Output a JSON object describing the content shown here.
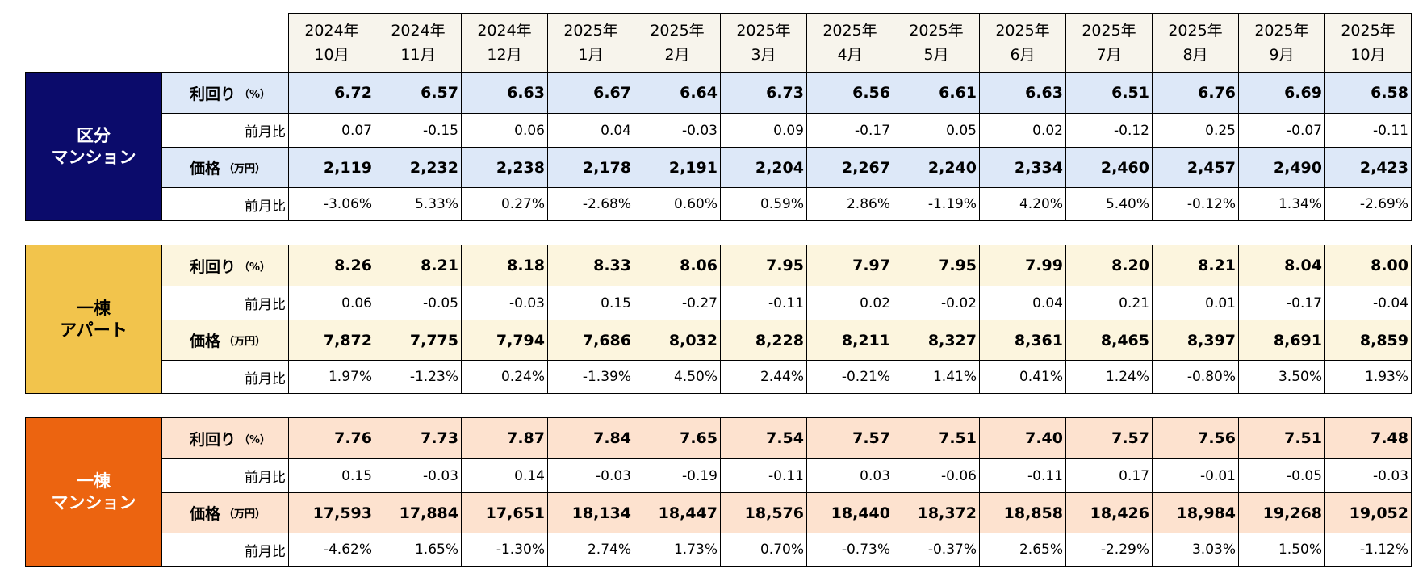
{
  "header": {
    "months": [
      [
        "2024年",
        "10月"
      ],
      [
        "2024年",
        "11月"
      ],
      [
        "2024年",
        "12月"
      ],
      [
        "2025年",
        "1月"
      ],
      [
        "2025年",
        "2月"
      ],
      [
        "2025年",
        "3月"
      ],
      [
        "2025年",
        "4月"
      ],
      [
        "2025年",
        "5月"
      ],
      [
        "2025年",
        "6月"
      ],
      [
        "2025年",
        "7月"
      ],
      [
        "2025年",
        "8月"
      ],
      [
        "2025年",
        "9月"
      ],
      [
        "2025年",
        "10月"
      ]
    ]
  },
  "groups": [
    {
      "name": [
        "区分",
        "マンション"
      ],
      "rows": [
        {
          "label": "利回り",
          "unit": "（%）",
          "values": [
            "6.72",
            "6.57",
            "6.63",
            "6.67",
            "6.64",
            "6.73",
            "6.56",
            "6.61",
            "6.63",
            "6.51",
            "6.76",
            "6.69",
            "6.58"
          ]
        },
        {
          "label": "前月比",
          "values": [
            "0.07",
            "-0.15",
            "0.06",
            "0.04",
            "-0.03",
            "0.09",
            "-0.17",
            "0.05",
            "0.02",
            "-0.12",
            "0.25",
            "-0.07",
            "-0.11"
          ]
        },
        {
          "label": "価格",
          "unit": "（万円）",
          "values": [
            "2,119",
            "2,232",
            "2,238",
            "2,178",
            "2,191",
            "2,204",
            "2,267",
            "2,240",
            "2,334",
            "2,460",
            "2,457",
            "2,490",
            "2,423"
          ]
        },
        {
          "label": "前月比",
          "values": [
            "-3.06%",
            "5.33%",
            "0.27%",
            "-2.68%",
            "0.60%",
            "0.59%",
            "2.86%",
            "-1.19%",
            "4.20%",
            "5.40%",
            "-0.12%",
            "1.34%",
            "-2.69%"
          ]
        }
      ]
    },
    {
      "name": [
        "一棟",
        "アパート"
      ],
      "rows": [
        {
          "label": "利回り",
          "unit": "（%）",
          "values": [
            "8.26",
            "8.21",
            "8.18",
            "8.33",
            "8.06",
            "7.95",
            "7.97",
            "7.95",
            "7.99",
            "8.20",
            "8.21",
            "8.04",
            "8.00"
          ]
        },
        {
          "label": "前月比",
          "values": [
            "0.06",
            "-0.05",
            "-0.03",
            "0.15",
            "-0.27",
            "-0.11",
            "0.02",
            "-0.02",
            "0.04",
            "0.21",
            "0.01",
            "-0.17",
            "-0.04"
          ]
        },
        {
          "label": "価格",
          "unit": "（万円）",
          "values": [
            "7,872",
            "7,775",
            "7,794",
            "7,686",
            "8,032",
            "8,228",
            "8,211",
            "8,327",
            "8,361",
            "8,465",
            "8,397",
            "8,691",
            "8,859"
          ]
        },
        {
          "label": "前月比",
          "values": [
            "1.97%",
            "-1.23%",
            "0.24%",
            "-1.39%",
            "4.50%",
            "2.44%",
            "-0.21%",
            "1.41%",
            "0.41%",
            "1.24%",
            "-0.80%",
            "3.50%",
            "1.93%"
          ]
        }
      ]
    },
    {
      "name": [
        "一棟",
        "マンション"
      ],
      "rows": [
        {
          "label": "利回り",
          "unit": "（%）",
          "values": [
            "7.76",
            "7.73",
            "7.87",
            "7.84",
            "7.65",
            "7.54",
            "7.57",
            "7.51",
            "7.40",
            "7.57",
            "7.56",
            "7.51",
            "7.48"
          ]
        },
        {
          "label": "前月比",
          "values": [
            "0.15",
            "-0.03",
            "0.14",
            "-0.03",
            "-0.19",
            "-0.11",
            "0.03",
            "-0.06",
            "-0.11",
            "0.17",
            "-0.01",
            "-0.05",
            "-0.03"
          ]
        },
        {
          "label": "価格",
          "unit": "（万円）",
          "values": [
            "17,593",
            "17,884",
            "17,651",
            "18,134",
            "18,447",
            "18,576",
            "18,440",
            "18,372",
            "18,858",
            "18,426",
            "18,984",
            "19,268",
            "19,052"
          ]
        },
        {
          "label": "前月比",
          "values": [
            "-4.62%",
            "1.65%",
            "-1.30%",
            "2.74%",
            "1.73%",
            "0.70%",
            "-0.73%",
            "-0.37%",
            "2.65%",
            "-2.29%",
            "3.03%",
            "1.50%",
            "-1.12%"
          ]
        }
      ]
    }
  ]
}
